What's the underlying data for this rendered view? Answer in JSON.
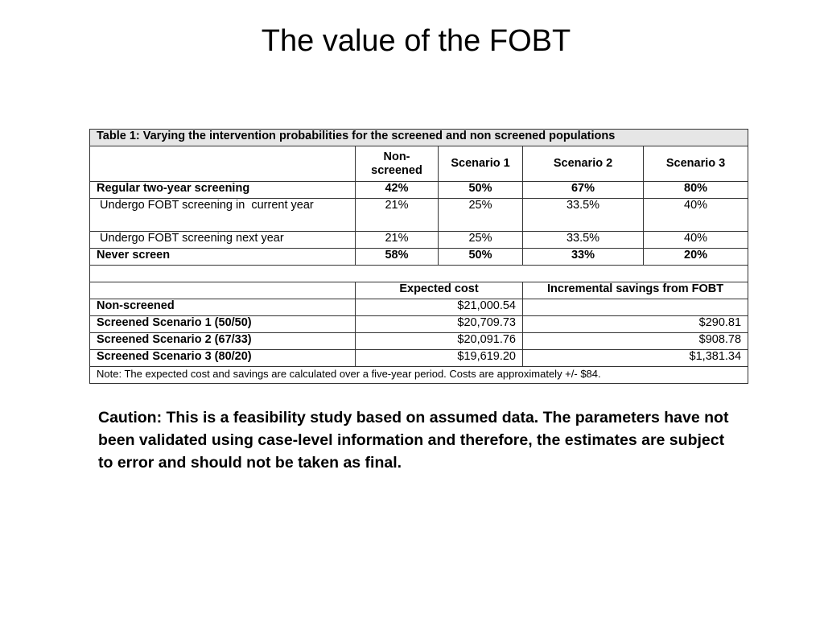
{
  "title": "The value of the FOBT",
  "table": {
    "caption": "Table 1: Varying the intervention probabilities for the screened and non screened populations",
    "headers": [
      "",
      "Non-screened",
      "Scenario 1",
      "Scenario 2",
      "Scenario 3"
    ],
    "rows": [
      {
        "label": "Regular two-year screening",
        "bold": true,
        "values": [
          "42%",
          "50%",
          "67%",
          "80%"
        ]
      },
      {
        "label": " Undergo FOBT screening in  current year",
        "bold": false,
        "values": [
          "21%",
          "25%",
          "33.5%",
          "40%"
        ]
      },
      {
        "label": " Undergo FOBT screening next year",
        "bold": false,
        "values": [
          "21%",
          "25%",
          "33.5%",
          "40%"
        ]
      },
      {
        "label": "Never screen",
        "bold": true,
        "values": [
          "58%",
          "50%",
          "33%",
          "20%"
        ]
      }
    ],
    "cost_headers": [
      "",
      "Expected cost",
      "Incremental savings from FOBT"
    ],
    "cost_rows": [
      {
        "label": "Non-screened",
        "cost": "$21,000.54",
        "savings": ""
      },
      {
        "label": "Screened Scenario 1 (50/50)",
        "cost": "$20,709.73",
        "savings": "$290.81"
      },
      {
        "label": "Screened Scenario 2 (67/33)",
        "cost": "$20,091.76",
        "savings": "$908.78"
      },
      {
        "label": "Screened Scenario 3 (80/20)",
        "cost": "$19,619.20",
        "savings": "$1,381.34"
      }
    ],
    "note": "Note: The expected cost and savings are calculated over a five-year period. Costs are approximately +/- $84."
  },
  "caution": "Caution: This is a feasibility study based on assumed data. The parameters have not been validated using case-level information and therefore, the estimates are subject to error and should not be taken as final."
}
